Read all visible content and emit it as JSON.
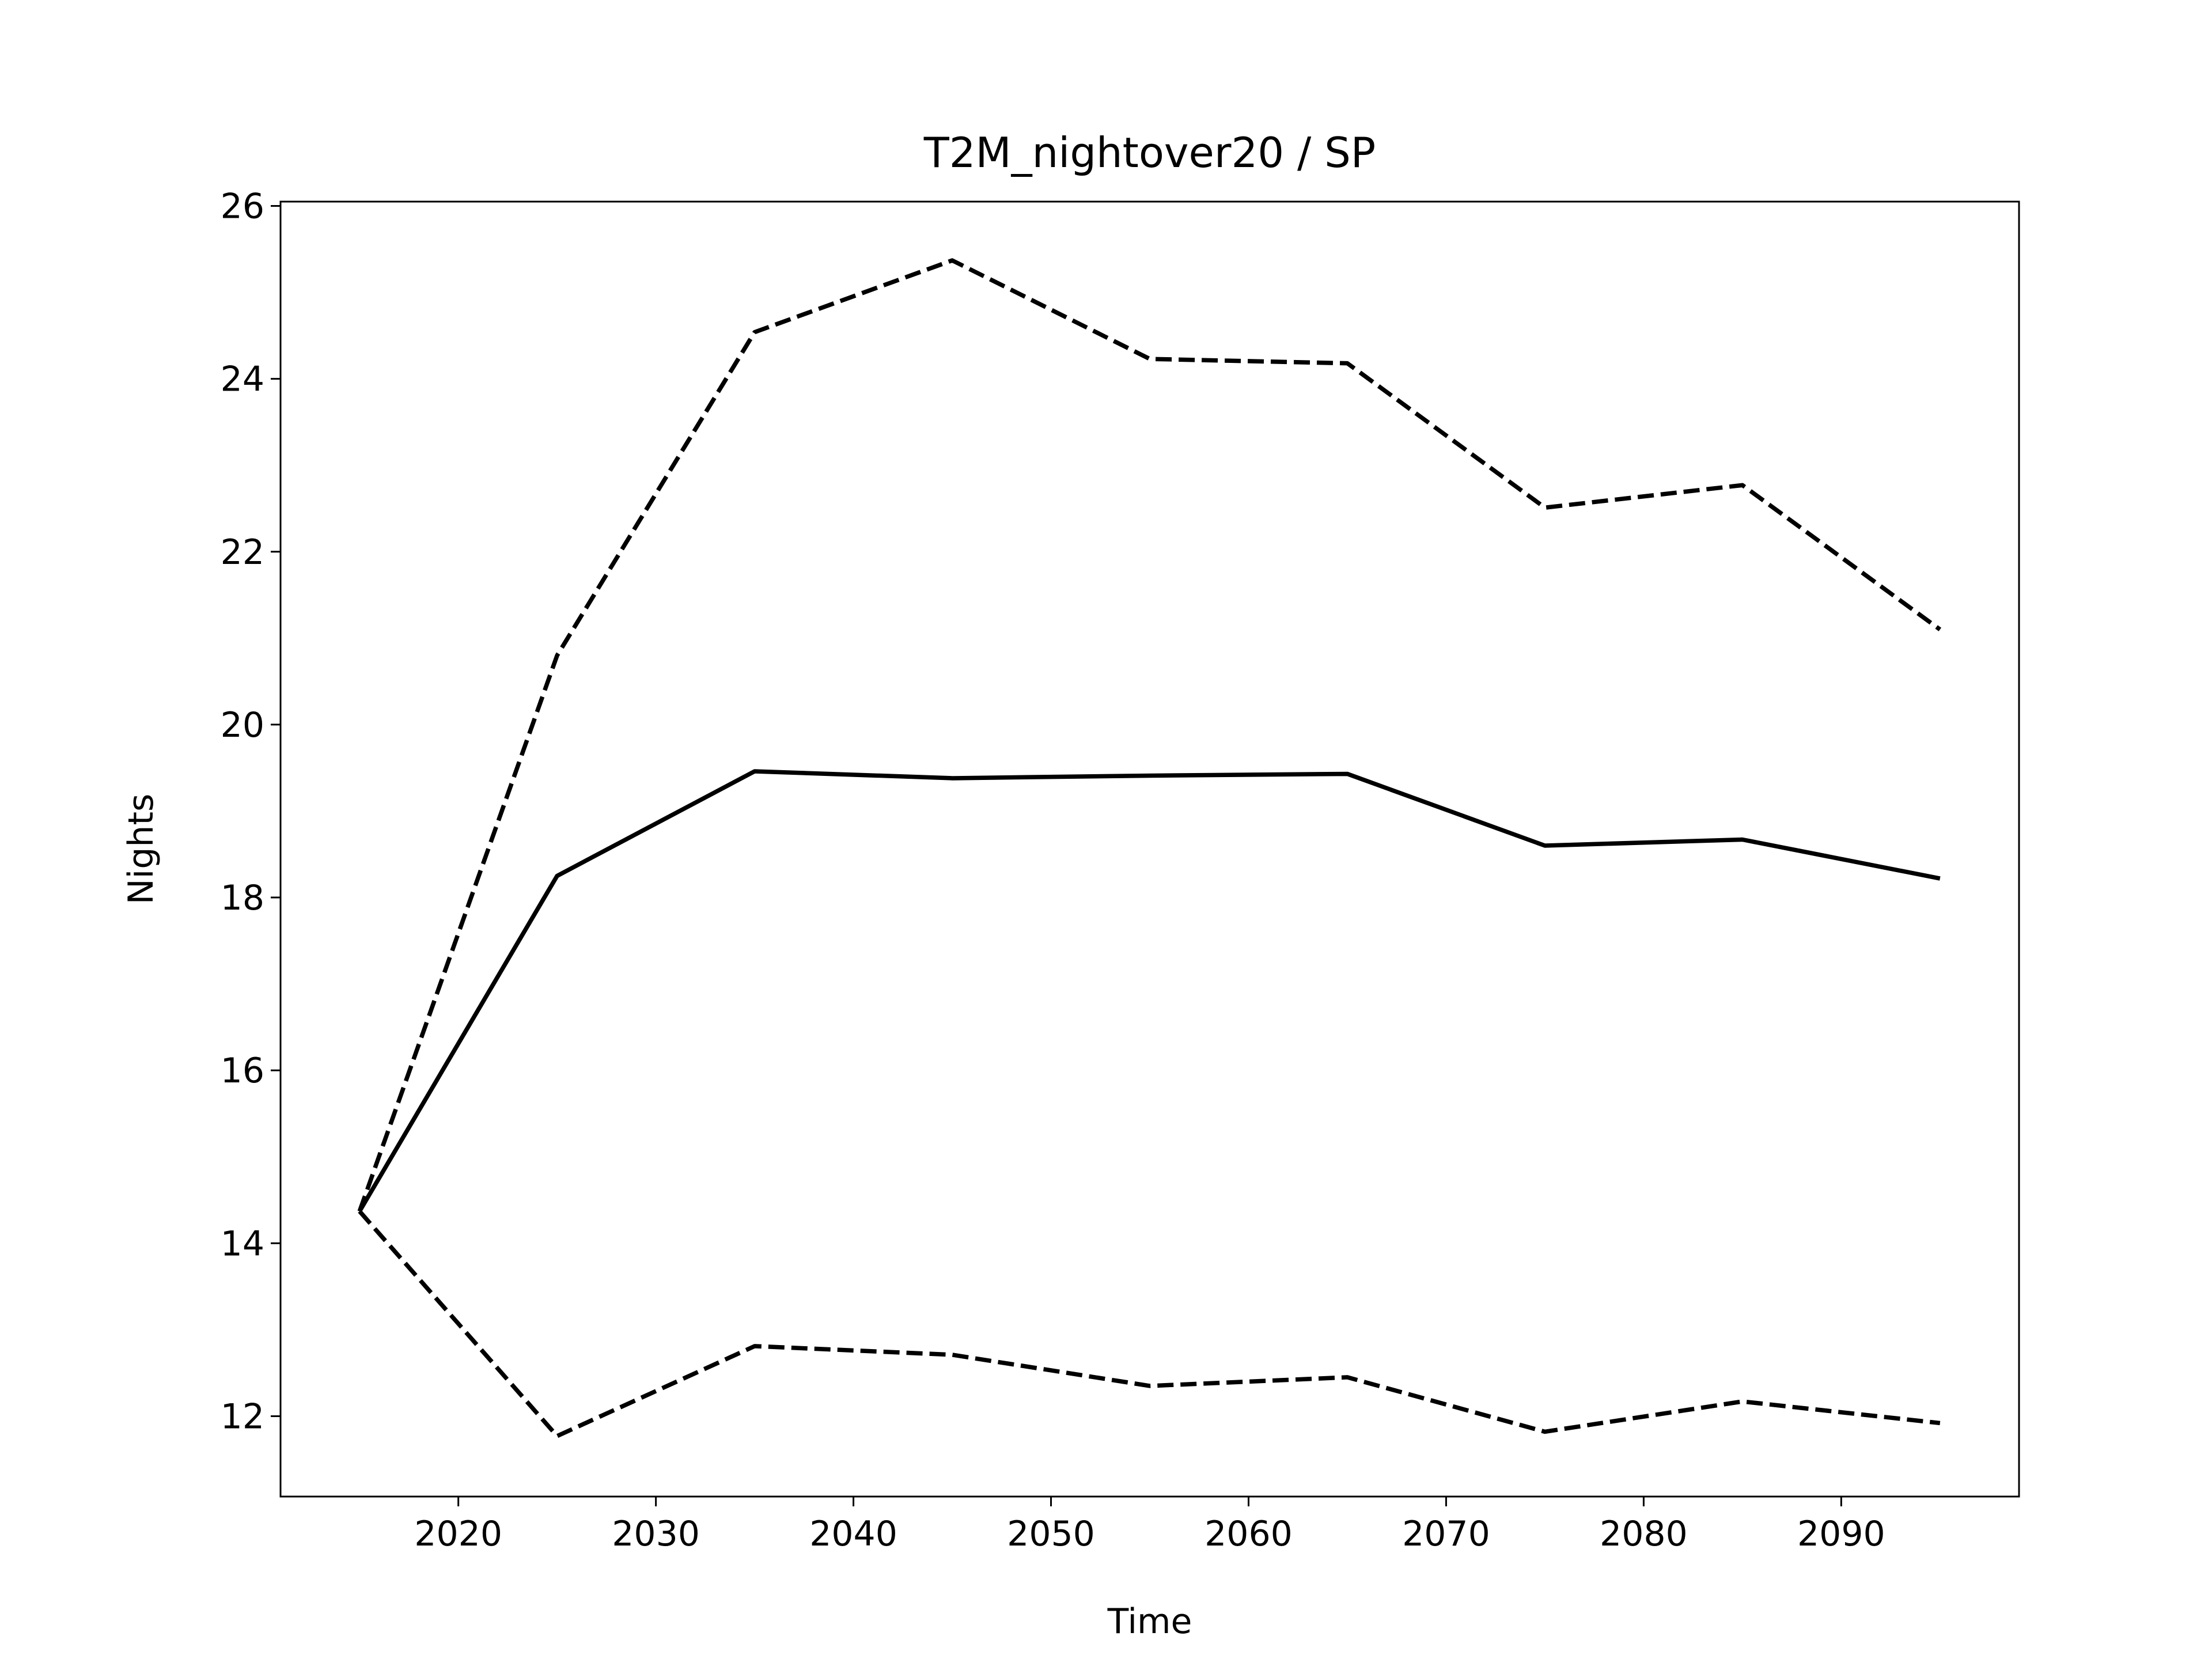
{
  "chart_data": {
    "type": "line",
    "title": "T2M_nightover20 / SP",
    "x_label": "Time",
    "y_label": "Nights",
    "x": [
      2015,
      2025,
      2035,
      2045,
      2055,
      2065,
      2075,
      2085,
      2095
    ],
    "series": [
      {
        "color": "#000000",
        "linestyle": "solid",
        "values": [
          14.37,
          18.25,
          19.46,
          19.38,
          19.41,
          19.43,
          18.6,
          18.67,
          18.22
        ]
      },
      {
        "color": "#000000",
        "linestyle": "dashed",
        "values": [
          14.37,
          20.8,
          24.54,
          25.37,
          24.23,
          24.18,
          22.51,
          22.77,
          21.1
        ]
      },
      {
        "color": "#000000",
        "linestyle": "dashed",
        "values": [
          14.37,
          11.77,
          12.81,
          12.71,
          12.35,
          12.45,
          11.82,
          12.17,
          11.92
        ]
      }
    ],
    "xlim": [
      2011,
      2099
    ],
    "xticks": [
      2020,
      2030,
      2040,
      2050,
      2060,
      2070,
      2080,
      2090
    ],
    "ylim": [
      11.07,
      26.05
    ],
    "yticks": [
      12,
      14,
      16,
      18,
      20,
      22,
      24,
      26
    ],
    "grid": false
  }
}
